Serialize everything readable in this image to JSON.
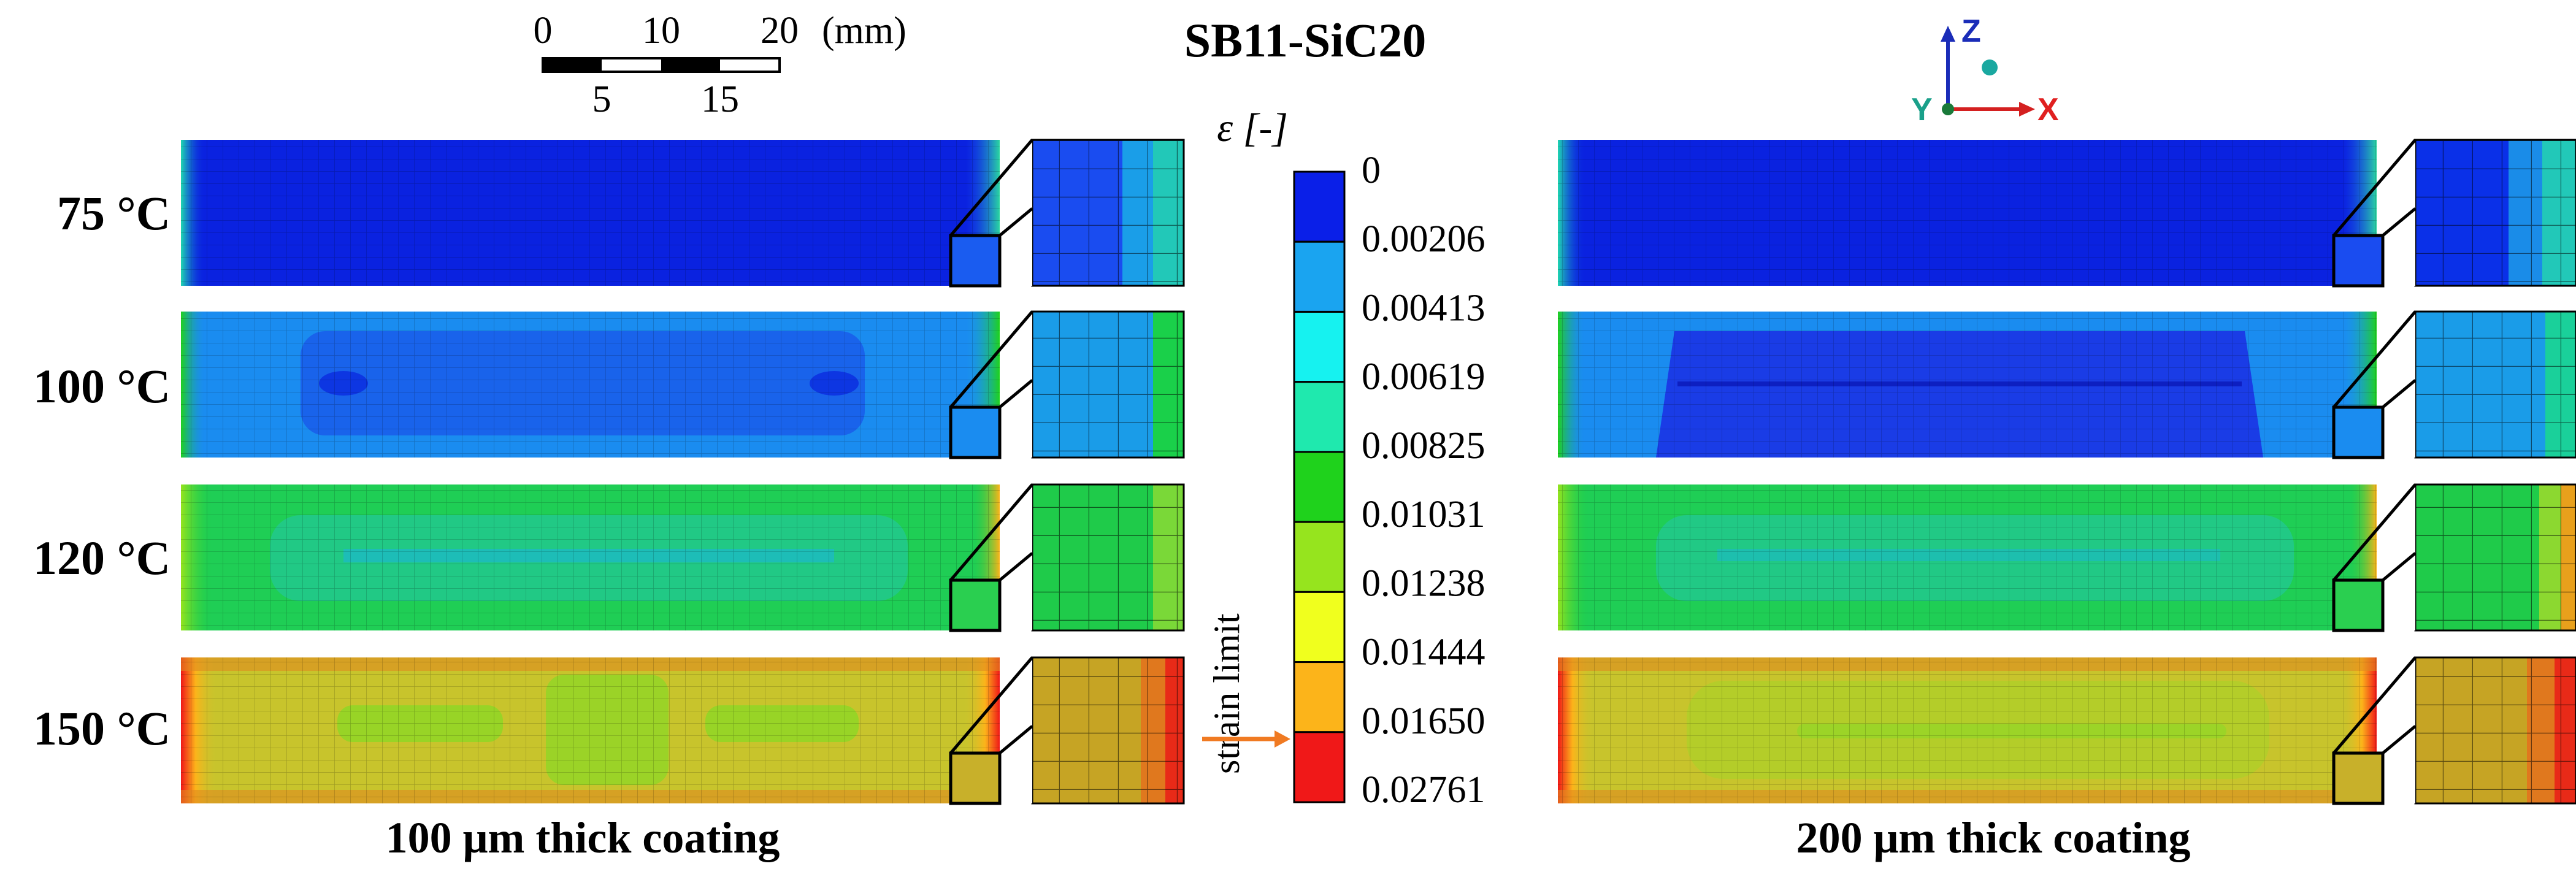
{
  "title": "SB11-SiC20",
  "scale_bar": {
    "top_labels": [
      "0",
      "10",
      "20"
    ],
    "bottom_labels": [
      "5",
      "15"
    ],
    "unit": "(mm)"
  },
  "axes_triad": {
    "z": "Z",
    "y": "Y",
    "x": "X"
  },
  "legend": {
    "label": "ε [-]",
    "values": [
      "0",
      "0.00206",
      "0.00413",
      "0.00619",
      "0.00825",
      "0.01031",
      "0.01238",
      "0.01444",
      "0.01650",
      "0.02761"
    ],
    "colors": [
      "#0a1fe8",
      "#1aa4f0",
      "#16f2f0",
      "#1fe9ae",
      "#1fd21c",
      "#96e41e",
      "#f0ff1e",
      "#fcb41a",
      "#f01818"
    ],
    "strain_limit_label": "strain limit",
    "strain_limit_color": "#f07a22"
  },
  "temperatures": [
    "75 °C",
    "100 °C",
    "120 °C",
    "150 °C"
  ],
  "panels": {
    "left_caption": "100 μm thick coating",
    "right_caption": "200 μm thick coating"
  }
}
